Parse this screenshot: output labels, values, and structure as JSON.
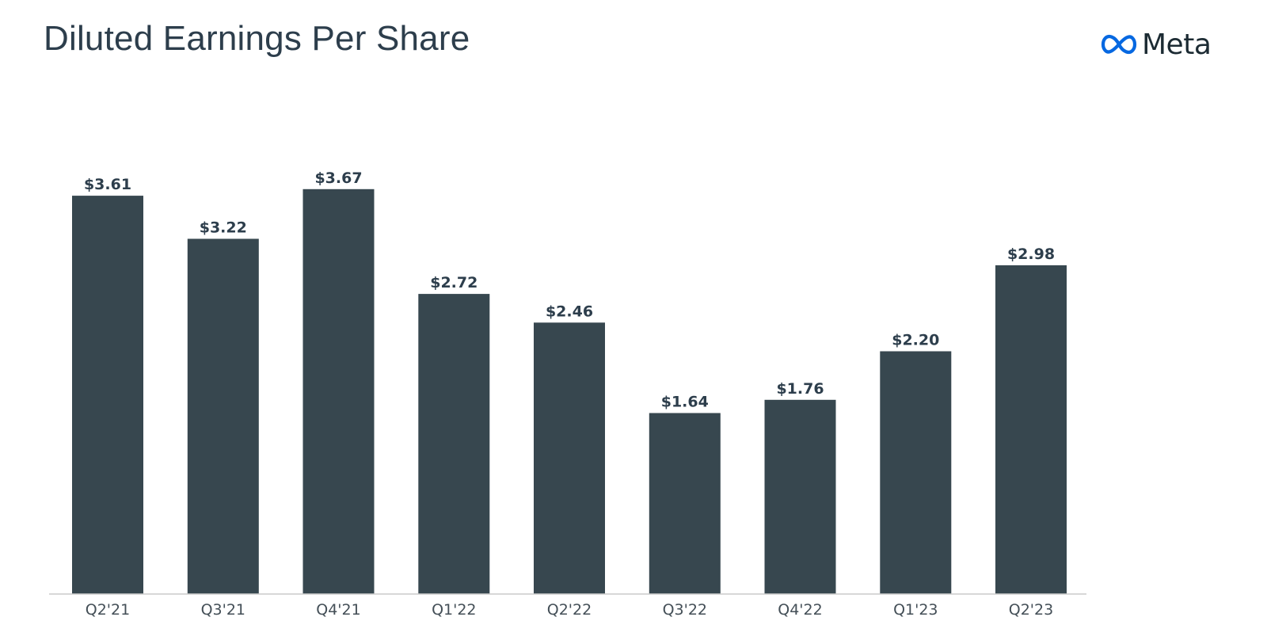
{
  "brand": {
    "name": "Meta",
    "logo_icon": "meta-infinity-icon",
    "logo_color": "#0668E1"
  },
  "chart_data": {
    "type": "bar",
    "title": "Diluted Earnings Per Share",
    "categories": [
      "Q2'21",
      "Q3'21",
      "Q4'21",
      "Q1'22",
      "Q2'22",
      "Q3'22",
      "Q4'22",
      "Q1'23",
      "Q2'23"
    ],
    "values": [
      3.61,
      3.22,
      3.67,
      2.72,
      2.46,
      1.64,
      1.76,
      2.2,
      2.98
    ],
    "data_labels": [
      "$3.61",
      "$3.22",
      "$3.67",
      "$2.72",
      "$2.46",
      "$1.64",
      "$1.76",
      "$2.20",
      "$2.98"
    ],
    "xlabel": "",
    "ylabel": "",
    "ylim": [
      0,
      4
    ],
    "grid": false,
    "legend": "none",
    "bar_color": "#37474F",
    "axis_color": "#cccccc"
  }
}
